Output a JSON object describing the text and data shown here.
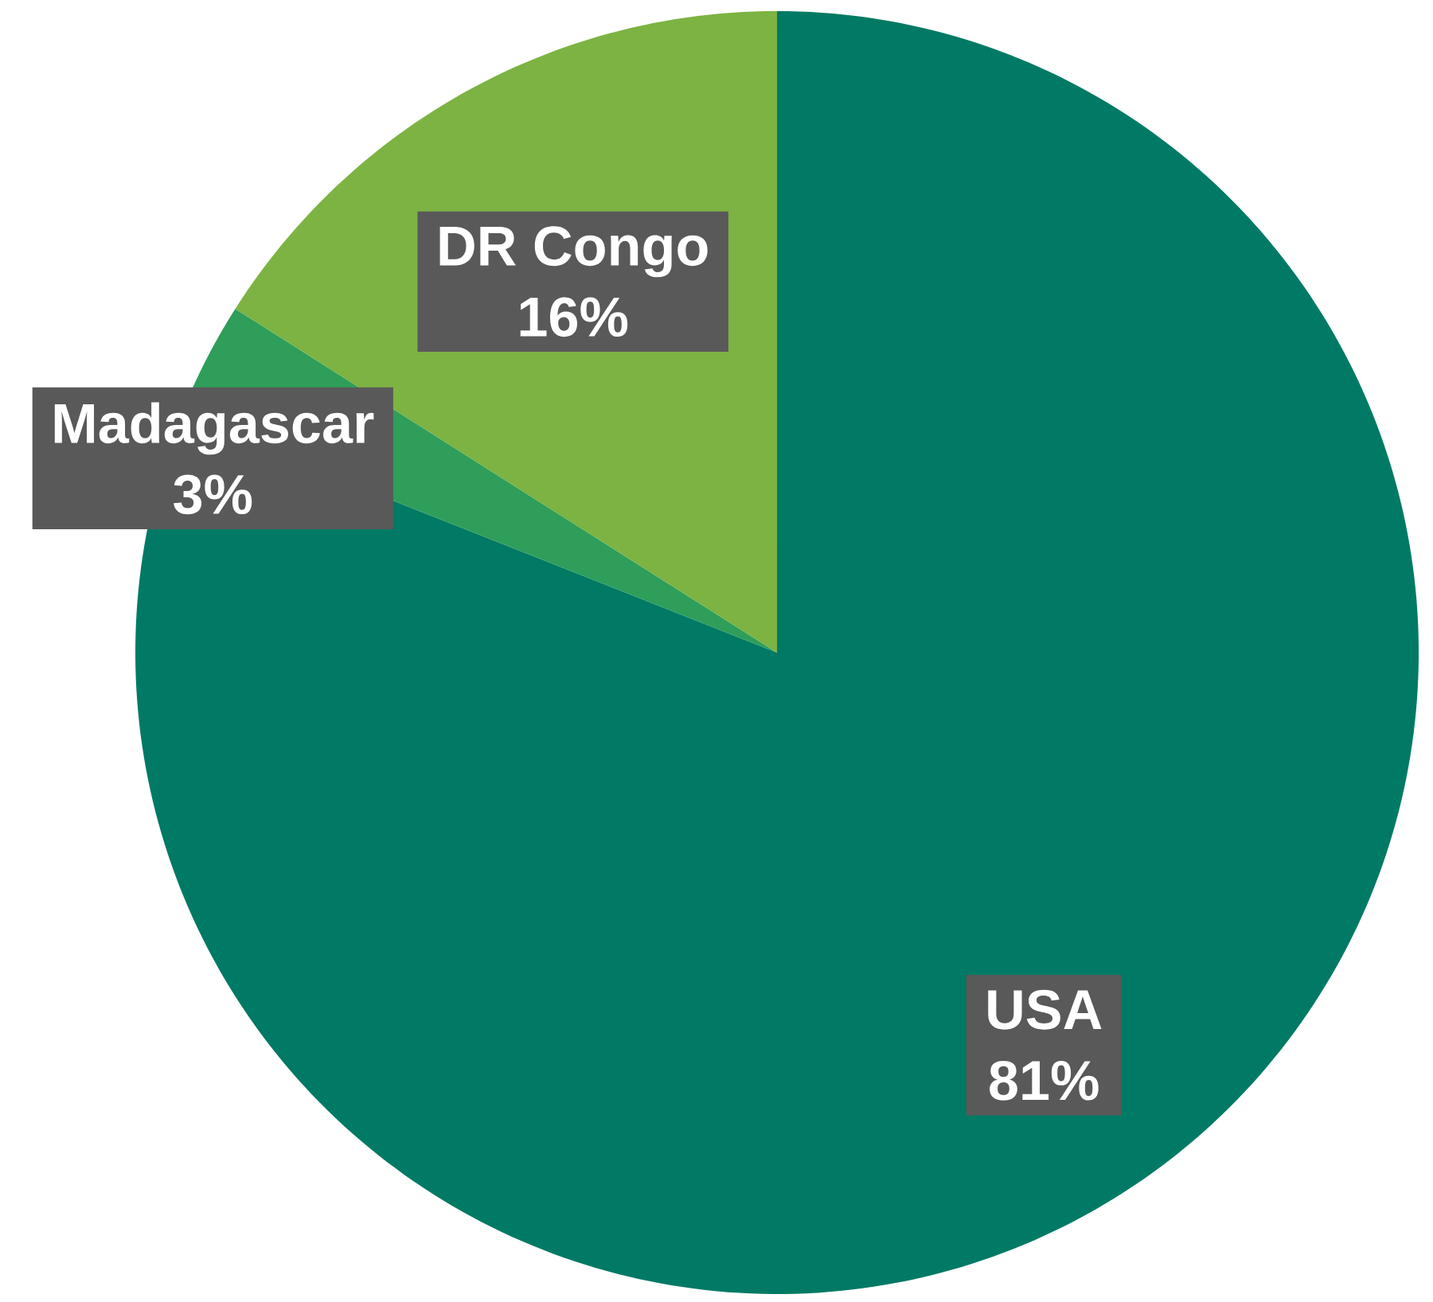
{
  "chart_data": {
    "type": "pie",
    "categories": [
      "USA",
      "Madagascar",
      "DR Congo"
    ],
    "values": [
      81,
      3,
      16
    ],
    "colors": [
      "#007a64",
      "#2e9e5a",
      "#7cb342"
    ],
    "value_labels": [
      "81%",
      "3%",
      "16%"
    ]
  }
}
